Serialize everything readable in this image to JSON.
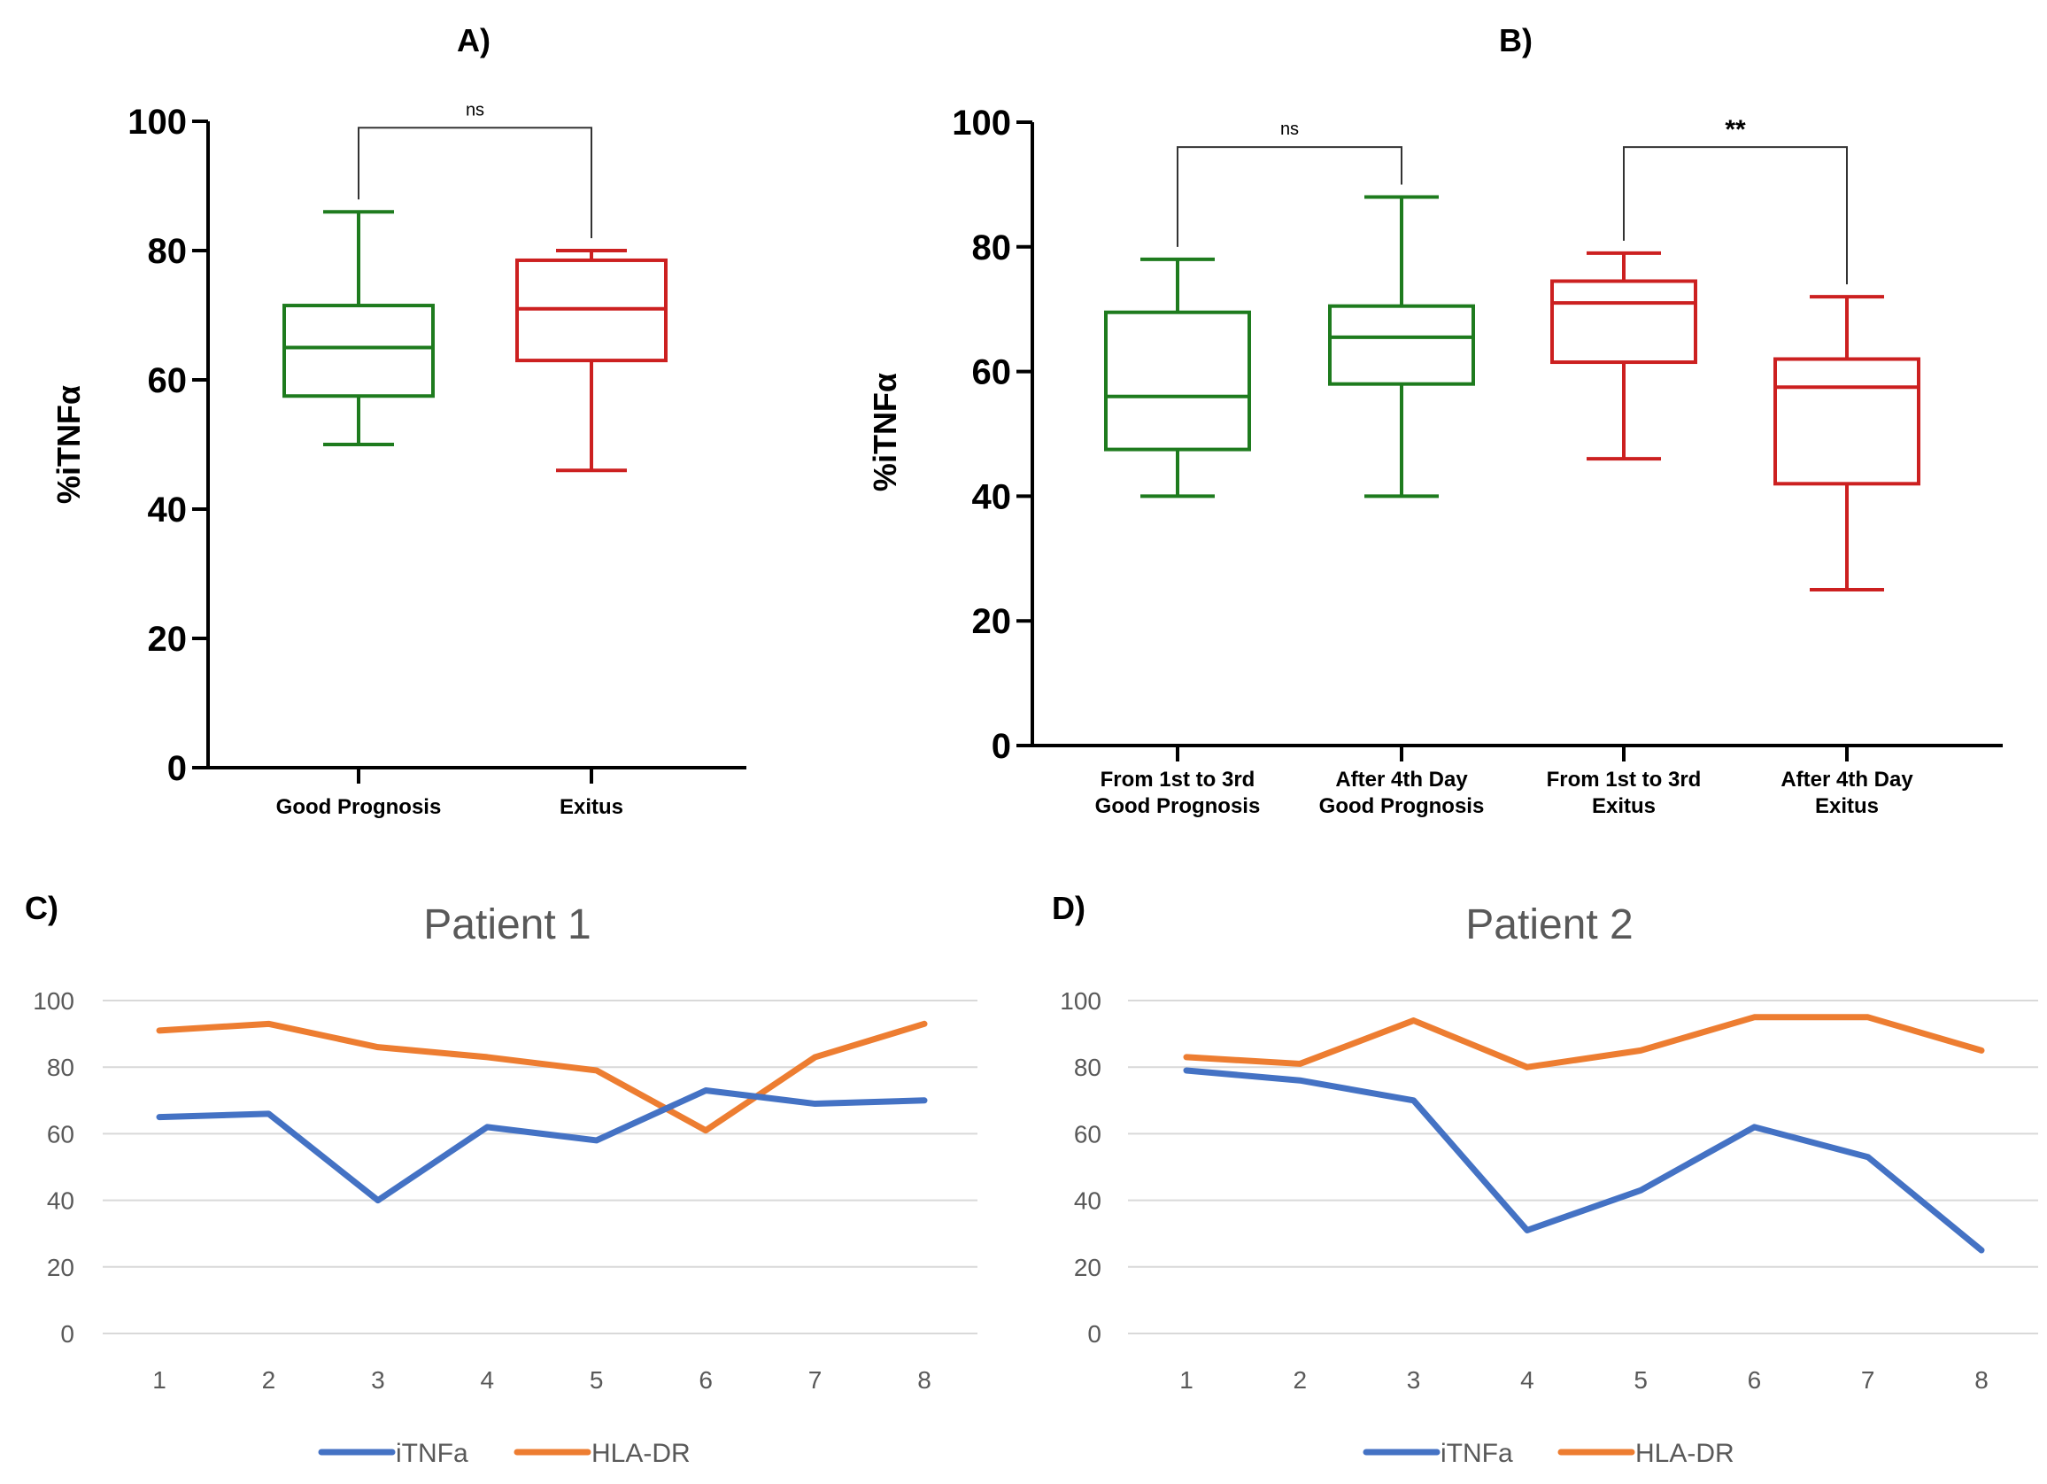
{
  "colors": {
    "green": "#1e7b1e",
    "red": "#cc2020",
    "blue": "#4472c4",
    "orange": "#ed7d31",
    "grid": "#d9d9d9",
    "axis": "#000000"
  },
  "chart_data": [
    {
      "type": "box",
      "panel": "A)",
      "title": "A)",
      "ylabel": "%iTNFα",
      "ylim": [
        0,
        100
      ],
      "yticks": [
        "0",
        "20",
        "40",
        "60",
        "80",
        "100"
      ],
      "categories": [
        "Good Prognosis",
        "Exitus"
      ],
      "boxes": [
        {
          "min": 50,
          "q1": 57.5,
          "median": 65,
          "q3": 71.5,
          "max": 86,
          "color": "green"
        },
        {
          "min": 46,
          "q1": 63,
          "median": 71,
          "q3": 78.5,
          "max": 80,
          "color": "red"
        }
      ],
      "significance": [
        {
          "from": 0,
          "to": 1,
          "label": "ns",
          "y": 99
        }
      ]
    },
    {
      "type": "box",
      "panel": "B)",
      "title": "B)",
      "ylabel": "%iTNFα",
      "ylim": [
        0,
        100
      ],
      "yticks": [
        "0",
        "20",
        "40",
        "60",
        "80",
        "100"
      ],
      "categories": [
        {
          "line1": "From 1st to 3rd",
          "line2": "Good Prognosis"
        },
        {
          "line1": "After 4th Day",
          "line2": "Good Prognosis"
        },
        {
          "line1": "From 1st to 3rd",
          "line2": "Exitus"
        },
        {
          "line1": "After 4th Day",
          "line2": "Exitus"
        }
      ],
      "boxes": [
        {
          "min": 40,
          "q1": 47.5,
          "median": 56,
          "q3": 69.5,
          "max": 78,
          "color": "green"
        },
        {
          "min": 40,
          "q1": 58,
          "median": 65.5,
          "q3": 70.5,
          "max": 88,
          "color": "green"
        },
        {
          "min": 46,
          "q1": 61.5,
          "median": 71,
          "q3": 74.5,
          "max": 79,
          "color": "red"
        },
        {
          "min": 25,
          "q1": 42,
          "median": 57.5,
          "q3": 62,
          "max": 72,
          "color": "red"
        }
      ],
      "significance": [
        {
          "from": 0,
          "to": 1,
          "label": "ns",
          "y": 96
        },
        {
          "from": 2,
          "to": 3,
          "label": "**",
          "y": 96
        }
      ]
    },
    {
      "type": "line",
      "panel": "C)",
      "title": "Patient 1",
      "x": [
        "1",
        "2",
        "3",
        "4",
        "5",
        "6",
        "7",
        "8"
      ],
      "ylim": [
        0,
        100
      ],
      "yticks": [
        "0",
        "20",
        "40",
        "60",
        "80",
        "100"
      ],
      "series": [
        {
          "name": "iTNFa",
          "color": "blue",
          "values": [
            65,
            66,
            40,
            62,
            58,
            73,
            69,
            70
          ]
        },
        {
          "name": "HLA-DR",
          "color": "orange",
          "values": [
            91,
            93,
            86,
            83,
            79,
            61,
            83,
            93
          ]
        }
      ]
    },
    {
      "type": "line",
      "panel": "D)",
      "title": "Patient 2",
      "x": [
        "1",
        "2",
        "3",
        "4",
        "5",
        "6",
        "7",
        "8"
      ],
      "ylim": [
        0,
        100
      ],
      "yticks": [
        "0",
        "20",
        "40",
        "60",
        "80",
        "100"
      ],
      "series": [
        {
          "name": "iTNFa",
          "color": "blue",
          "values": [
            79,
            76,
            70,
            31,
            43,
            62,
            53,
            25
          ]
        },
        {
          "name": "HLA-DR",
          "color": "orange",
          "values": [
            83,
            81,
            94,
            80,
            85,
            95,
            95,
            85
          ]
        }
      ]
    }
  ]
}
